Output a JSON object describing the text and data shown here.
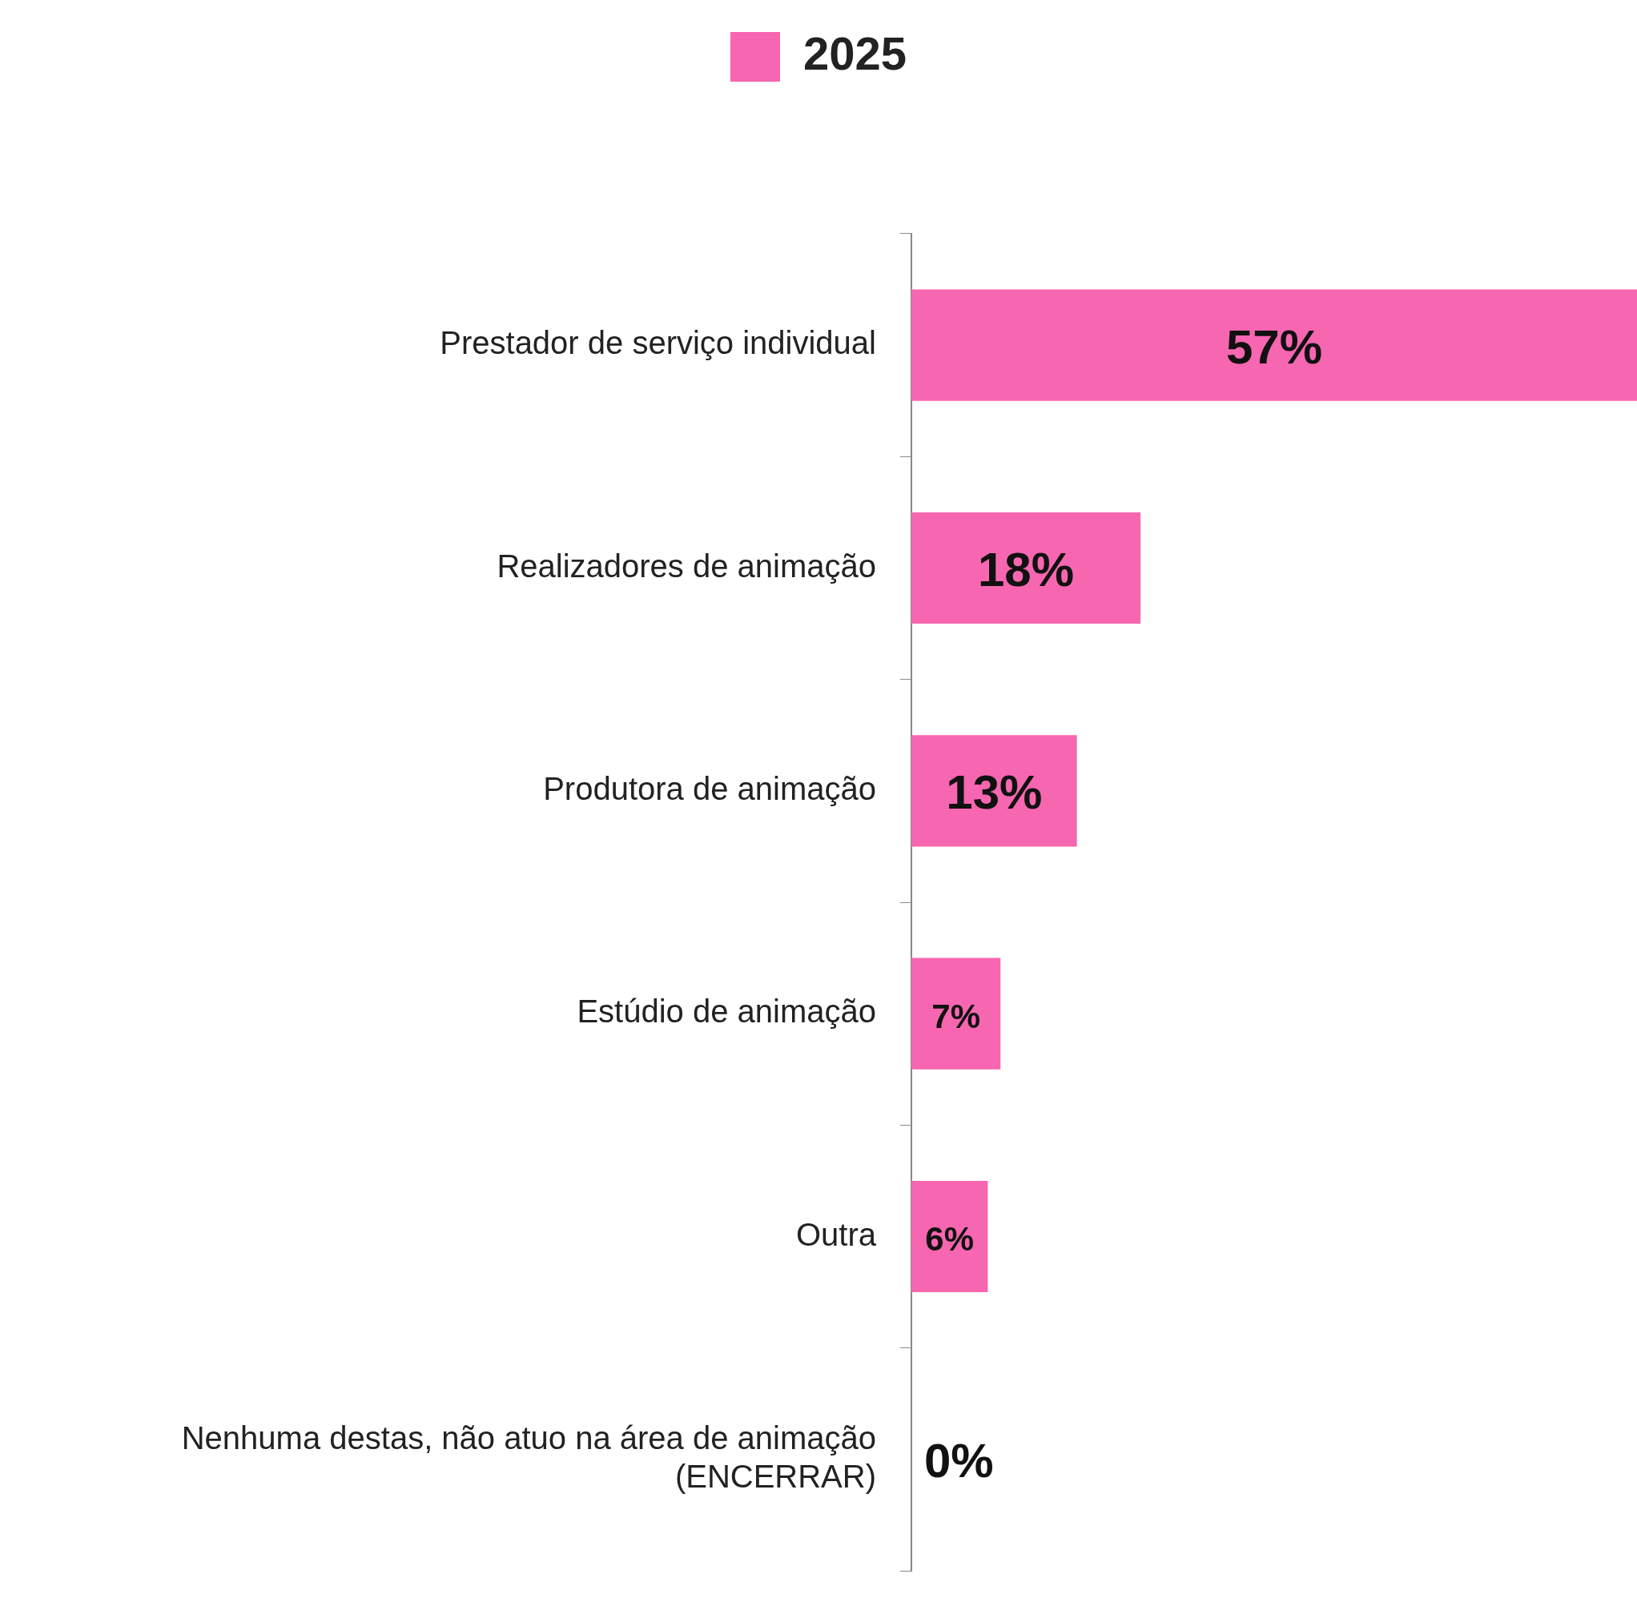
{
  "chart_data": {
    "type": "bar",
    "orientation": "horizontal",
    "categories": [
      "Prestador de serviço individual",
      "Realizadores de animação",
      "Produtora de animação",
      "Estúdio de animação",
      "Outra",
      "Nenhuma destas, não atuo na área de animação (ENCERRAR)"
    ],
    "series": [
      {
        "name": "2025",
        "color": "#f766b0",
        "values": [
          57,
          18,
          13,
          7,
          6,
          0
        ],
        "value_labels": [
          "57%",
          "18%",
          "13%",
          "7%",
          "6%",
          "0%"
        ]
      }
    ],
    "legend": "top",
    "tick_labels": "y",
    "grid": false
  }
}
